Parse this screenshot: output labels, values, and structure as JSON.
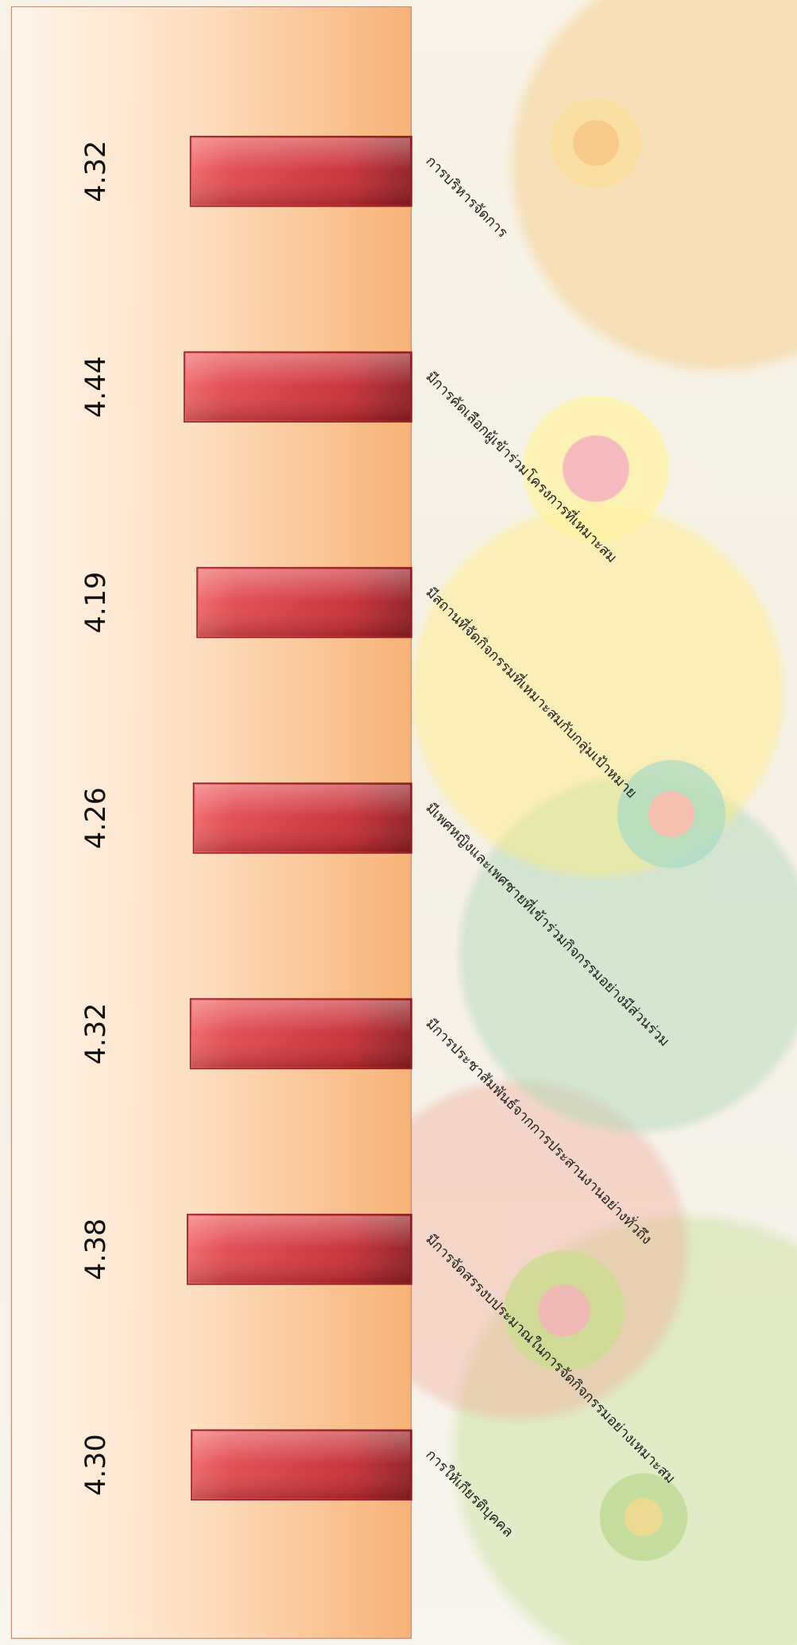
{
  "chart_data": {
    "type": "bar",
    "orientation": "horizontal",
    "categories": [
      "การให้เกียรติบุคคล",
      "มีการจัดสรรงบประมาณในการจัดกิจกรรมอย่างเหมาะสม",
      "มีการประชาสัมพันธ์จากการประสานงานอย่างทั่วถึง",
      "มีเพศหญิงและเพศชายที่เข้าร่วมกิจกรรมอย่างมีส่วนร่วม",
      "มีสถานที่จัดกิจกรรมที่เหมาะสมกับกลุ่มเป้าหมาย",
      "มีการคัดเลือกผู้เข้าร่วมโครงการที่เหมาะสม",
      "การบริหารจัดการ"
    ],
    "values": [
      4.3,
      4.38,
      4.32,
      4.26,
      4.19,
      4.44,
      4.32
    ],
    "title": "",
    "xlabel": "",
    "ylabel": "",
    "xlim": [
      0,
      4.5
    ],
    "grid": false,
    "legend": "none",
    "colors": {
      "bar": "#c82d34",
      "bar_highlight": "#ef6668",
      "panel_left": "#fff4ea",
      "panel_right": "#f8b277",
      "border": "#b48c72"
    }
  }
}
